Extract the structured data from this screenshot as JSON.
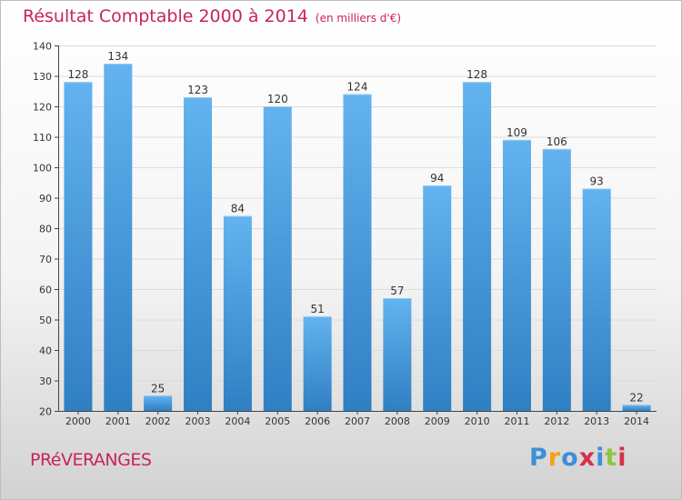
{
  "chart_data": {
    "type": "bar",
    "title": "Résultat Comptable 2000 à 2014",
    "unit_label": "(en milliers d'€)",
    "categories": [
      "2000",
      "2001",
      "2002",
      "2003",
      "2004",
      "2005",
      "2006",
      "2007",
      "2008",
      "2009",
      "2010",
      "2011",
      "2012",
      "2013",
      "2014"
    ],
    "values": [
      128,
      134,
      25,
      123,
      84,
      120,
      51,
      124,
      57,
      94,
      128,
      109,
      106,
      93,
      22
    ],
    "yticks": [
      20,
      30,
      40,
      50,
      60,
      70,
      80,
      90,
      100,
      110,
      120,
      130,
      140
    ],
    "ylim": [
      20,
      140
    ],
    "xlabel": "",
    "ylabel": "",
    "grid": true,
    "colors": {
      "bar_top": "#62b3ef",
      "bar_bottom": "#2f7fc3",
      "title": "#c8245a"
    }
  },
  "footer": {
    "commune": "PRéVERANGES",
    "logo_letters": [
      "P",
      "r",
      "o",
      "x",
      "i",
      "t",
      "i"
    ],
    "logo_colors": [
      "#3c8fd8",
      "#f2a21b",
      "#3c8fd8",
      "#d6304a",
      "#3c8fd8",
      "#8cc63f",
      "#d6304a"
    ]
  }
}
